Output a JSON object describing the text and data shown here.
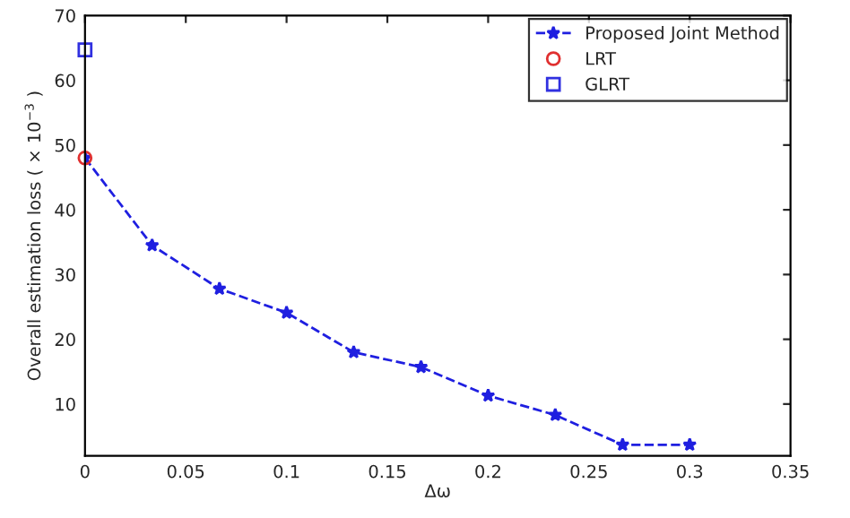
{
  "chart_data": {
    "type": "line",
    "xlabel": "Δω",
    "ylabel": "Overall estimation loss ( × 10$^{−3}$ )",
    "xlim": [
      0,
      0.35
    ],
    "xticks": [
      0,
      0.05,
      0.1,
      0.15,
      0.2,
      0.25,
      0.3,
      0.35
    ],
    "ylim": [
      2,
      70
    ],
    "yticks": [
      10,
      20,
      30,
      40,
      50,
      60,
      70
    ],
    "legend": "top right",
    "grid": false,
    "series": [
      {
        "name": "Proposed Joint Method",
        "color": "#1f1fe0",
        "marker": "star",
        "line_style": "dashed",
        "x": [
          0,
          0.0333,
          0.0667,
          0.1,
          0.1333,
          0.1667,
          0.2,
          0.2333,
          0.2667,
          0.3
        ],
        "values": [
          48,
          34.5,
          27.8,
          24.1,
          18,
          15.7,
          11.3,
          8.3,
          3.7,
          3.7
        ]
      },
      {
        "name": "LRT",
        "type": "scatter",
        "color": "#e03030",
        "marker": "circle",
        "x": [
          0
        ],
        "values": [
          48
        ]
      },
      {
        "name": "GLRT",
        "type": "scatter",
        "color": "#3030e0",
        "marker": "square",
        "x": [
          0
        ],
        "values": [
          64.7
        ]
      }
    ]
  }
}
